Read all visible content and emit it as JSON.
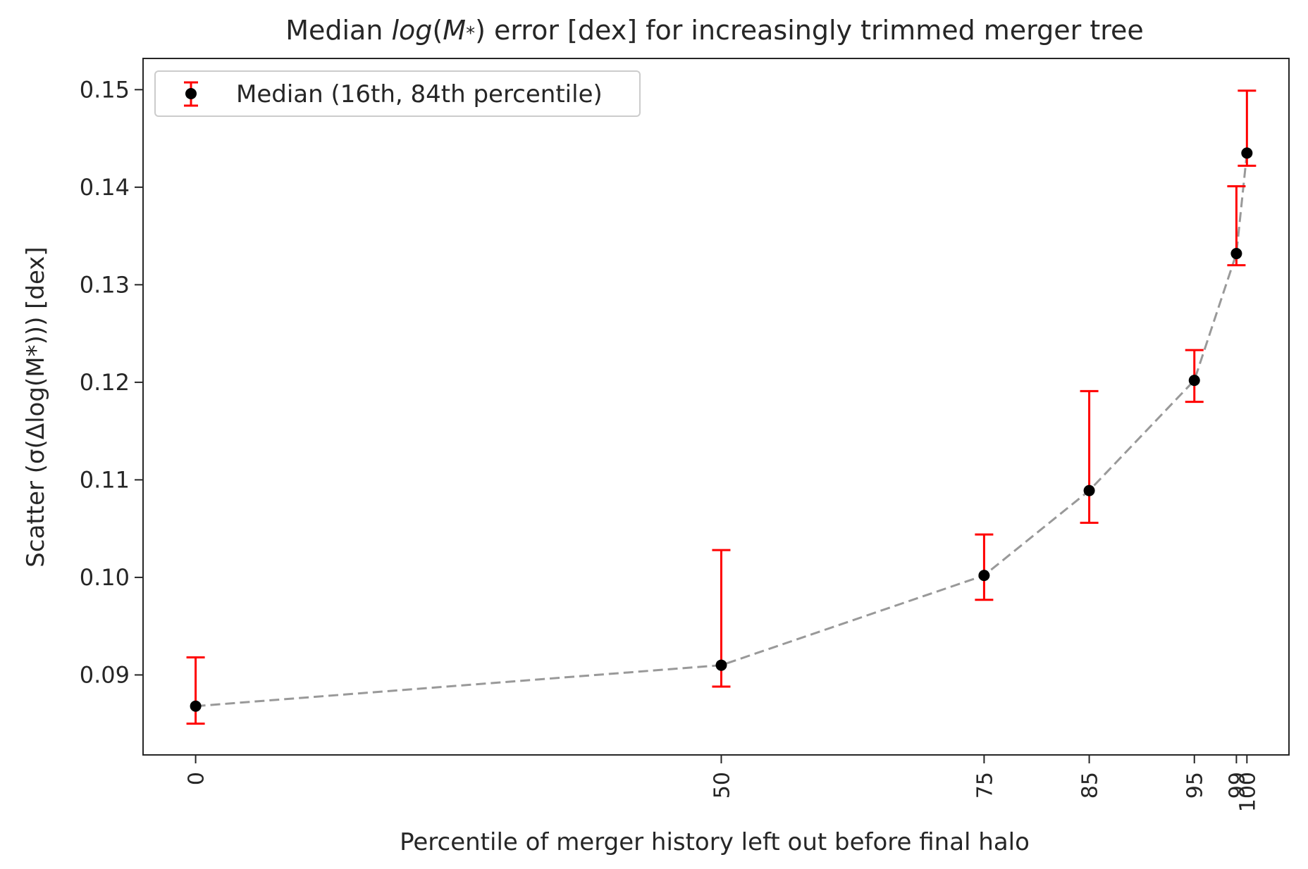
{
  "chart_data": {
    "type": "scatter",
    "title": {
      "prefix": "Median ",
      "italic": "log",
      "mid": "(",
      "italic2": "M",
      "sub": "*",
      "suffix": ") error [dex] for increasingly trimmed merger tree"
    },
    "xlabel": "Percentile of merger history left out before final halo",
    "ylabel": "Scatter (σ(Δlog(M*))) [dex]",
    "xlim": [
      -5,
      104
    ],
    "ylim": [
      0.0818,
      0.1532
    ],
    "x_ticks": [
      0,
      50,
      75,
      85,
      95,
      99,
      100
    ],
    "y_ticks": [
      0.09,
      0.1,
      0.11,
      0.12,
      0.13,
      0.14,
      0.15
    ],
    "y_tick_labels": [
      "0.09",
      "0.10",
      "0.11",
      "0.12",
      "0.13",
      "0.14",
      "0.15"
    ],
    "legend": {
      "label": "Median (16th, 84th percentile)",
      "placement": "top-left"
    },
    "grid": false,
    "series": [
      {
        "name": "Median (16th, 84th percentile)",
        "x": [
          0,
          50,
          75,
          85,
          95,
          99,
          100
        ],
        "median": [
          0.0868,
          0.091,
          0.1002,
          0.1089,
          0.1202,
          0.1332,
          0.1435
        ],
        "p16": [
          0.085,
          0.0888,
          0.0977,
          0.1056,
          0.118,
          0.132,
          0.1422
        ],
        "p84": [
          0.0918,
          0.1028,
          0.1044,
          0.1191,
          0.1233,
          0.1401,
          0.1499
        ]
      }
    ],
    "colors": {
      "marker": "#000000",
      "errorbar": "#ff0000",
      "line": "#999999"
    }
  }
}
